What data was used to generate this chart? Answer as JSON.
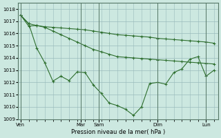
{
  "title": "Pression niveau de la mer( hPa )",
  "ylim": [
    1009,
    1018.5
  ],
  "yticks": [
    1009,
    1010,
    1011,
    1012,
    1013,
    1014,
    1015,
    1016,
    1017,
    1018
  ],
  "x_day_labels": [
    "Ven",
    "Mar",
    "Sam",
    "Dim",
    "Lun"
  ],
  "x_day_positions": [
    0.0,
    7.5,
    9.7,
    17.0,
    23.0
  ],
  "xlim": [
    -0.3,
    24.5
  ],
  "bg_color": "#cce8e0",
  "grid_color": "#99bbbb",
  "line_color": "#2d6e2d",
  "series1_x": [
    0,
    1,
    2,
    3,
    4,
    5,
    6,
    7,
    8,
    9,
    10,
    11,
    12,
    13,
    14,
    15,
    16,
    17,
    18,
    19,
    20,
    21,
    22,
    23,
    24
  ],
  "series1_y": [
    1017.5,
    1016.6,
    1016.65,
    1016.55,
    1016.5,
    1016.45,
    1016.4,
    1016.35,
    1016.3,
    1016.2,
    1016.1,
    1016.0,
    1015.9,
    1015.85,
    1015.8,
    1015.75,
    1015.7,
    1015.6,
    1015.55,
    1015.5,
    1015.45,
    1015.4,
    1015.35,
    1015.3,
    1015.2
  ],
  "series2_x": [
    0,
    1,
    2,
    3,
    4,
    5,
    6,
    7,
    8,
    9,
    10,
    11,
    12,
    13,
    14,
    15,
    16,
    17,
    18,
    19,
    20,
    21,
    22,
    23,
    24
  ],
  "series2_y": [
    1017.5,
    1016.8,
    1016.65,
    1016.5,
    1016.2,
    1015.9,
    1015.6,
    1015.3,
    1015.0,
    1014.7,
    1014.5,
    1014.3,
    1014.1,
    1014.05,
    1014.0,
    1013.95,
    1013.9,
    1013.85,
    1013.8,
    1013.75,
    1013.7,
    1013.65,
    1013.6,
    1013.55,
    1013.5
  ],
  "series3_x": [
    0,
    1,
    2,
    3,
    4,
    5,
    6,
    7,
    8,
    9,
    10,
    11,
    12,
    13,
    14,
    15,
    16,
    17,
    18,
    19,
    20,
    21,
    22,
    23,
    24
  ],
  "series3_y": [
    1017.5,
    1016.8,
    1014.8,
    1013.6,
    1012.1,
    1012.5,
    1012.15,
    1012.85,
    1012.8,
    1011.8,
    1011.1,
    1010.3,
    1010.1,
    1009.8,
    1009.3,
    1010.0,
    1011.9,
    1012.0,
    1011.85,
    1012.8,
    1013.1,
    1013.9,
    1014.1,
    1012.5,
    1013.0
  ]
}
